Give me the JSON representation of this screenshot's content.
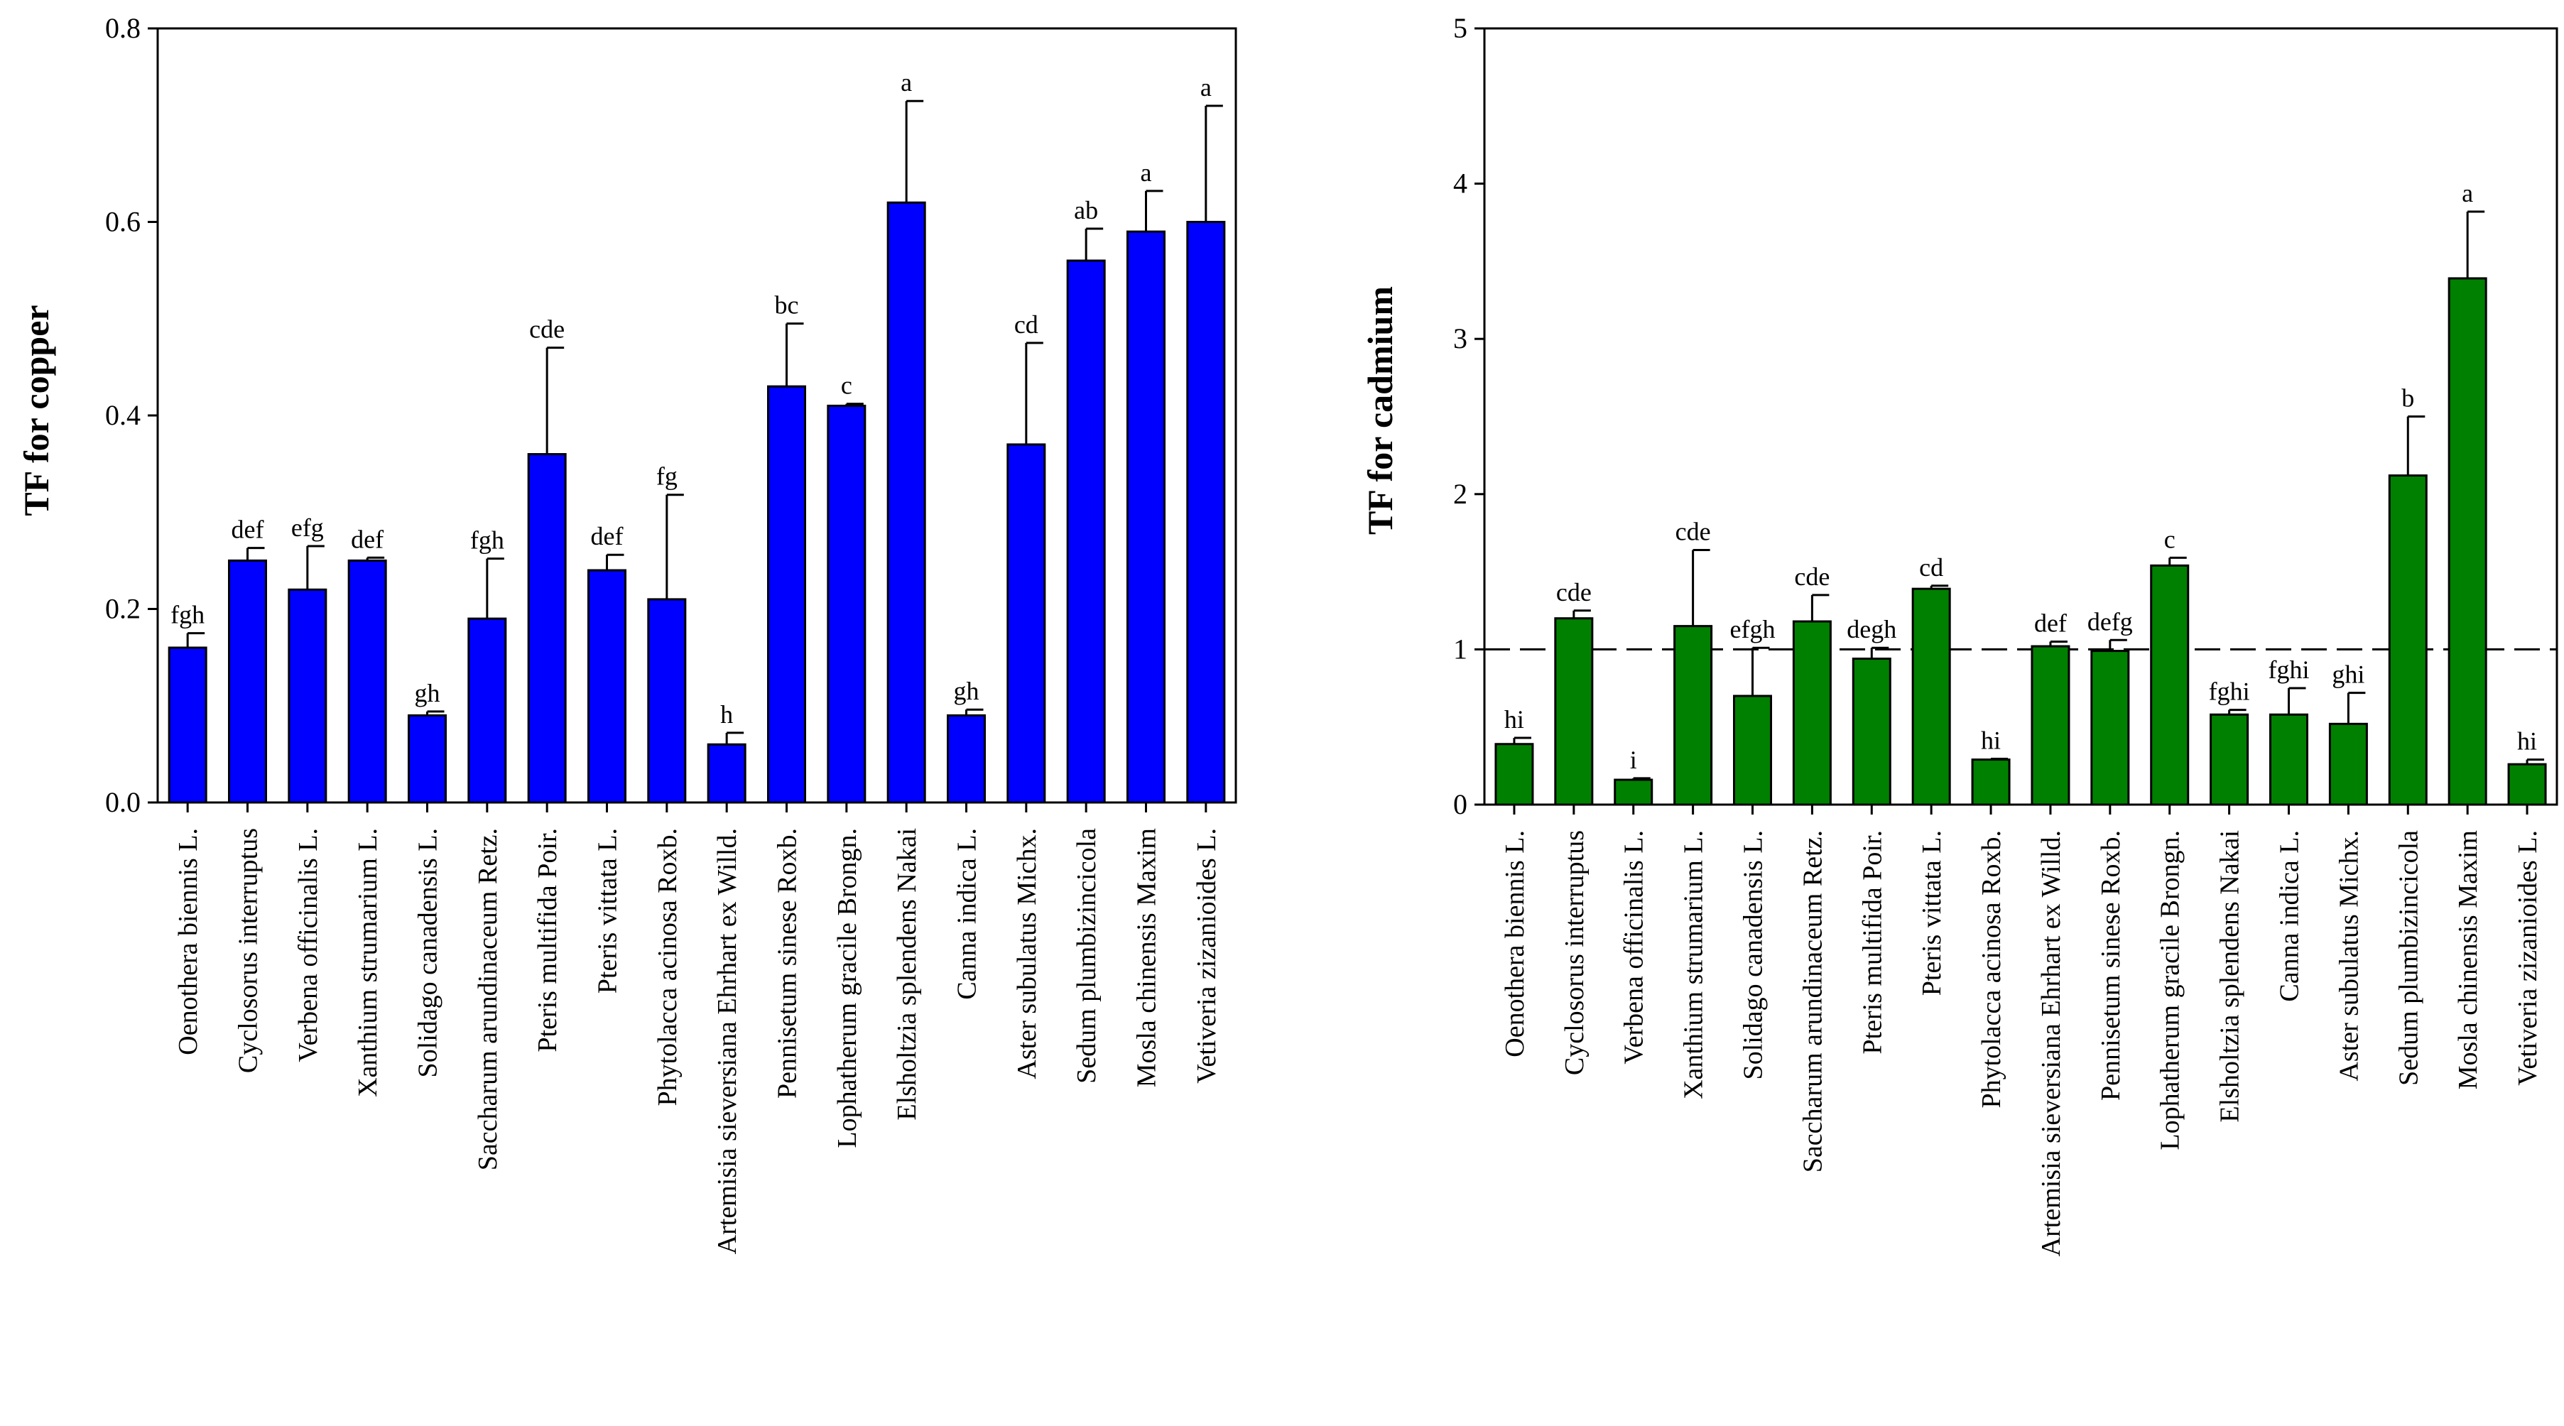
{
  "chart_data": [
    {
      "type": "bar",
      "title": "",
      "xlabel": "",
      "ylabel": "TF for copper",
      "ylim": [
        0,
        0.8
      ],
      "yticks": [
        "0.0",
        "0.2",
        "0.4",
        "0.6",
        "0.8"
      ],
      "ytick_values": [
        0,
        0.2,
        0.4,
        0.6,
        0.8
      ],
      "grid": false,
      "bar_color": "#0000ff",
      "categories": [
        "Oenothera biennis L.",
        "Cyclosorus interruptus",
        "Verbena officinalis L.",
        "Xanthium strumarium L.",
        "Solidago canadensis L.",
        "Saccharum arundinaceum Retz.",
        "Pteris multifida Poir.",
        "Pteris vittata L.",
        "Phytolacca acinosa Roxb.",
        "Artemisia sieversiana Ehrhart ex Willd.",
        "Pennisetum sinese Roxb.",
        "Lophatherum gracile Brongn.",
        "Elsholtzia splendens Nakai",
        "Canna indica L.",
        "Aster subulatus Michx.",
        "Sedum plumbizincicola",
        "Mosla chinensis Maxim",
        "Vetiveria zizanioides L."
      ],
      "values": [
        0.16,
        0.25,
        0.22,
        0.25,
        0.09,
        0.19,
        0.36,
        0.24,
        0.21,
        0.06,
        0.43,
        0.41,
        0.62,
        0.09,
        0.37,
        0.56,
        0.59,
        0.6
      ],
      "errors": [
        0.015,
        0.013,
        0.045,
        0.003,
        0.004,
        0.062,
        0.11,
        0.016,
        0.108,
        0.012,
        0.065,
        0.002,
        0.105,
        0.006,
        0.105,
        0.033,
        0.042,
        0.12
      ],
      "significance": [
        "fgh",
        "def",
        "efg",
        "def",
        "gh",
        "fgh",
        "cde",
        "def",
        "fg",
        "h",
        "bc",
        "c",
        "a",
        "gh",
        "cd",
        "ab",
        "a",
        "a"
      ]
    },
    {
      "type": "bar",
      "title": "",
      "xlabel": "",
      "ylabel": "TF for cadmium",
      "ylim": [
        0,
        5
      ],
      "yticks": [
        "0",
        "1",
        "2",
        "3",
        "4",
        "5"
      ],
      "ytick_values": [
        0,
        1,
        2,
        3,
        4,
        5
      ],
      "grid": false,
      "bar_color": "#008000",
      "reference_line": 1,
      "categories": [
        "Oenothera biennis L.",
        "Cyclosorus interruptus",
        "Verbena officinalis L.",
        "Xanthium strumarium L.",
        "Solidago canadensis L.",
        "Saccharum arundinaceum Retz.",
        "Pteris multifida Poir.",
        "Pteris vittata L.",
        "Phytolacca acinosa Roxb.",
        "Artemisia sieversiana Ehrhart ex Willd.",
        "Pennisetum sinese Roxb.",
        "Lophatherum gracile Brongn.",
        "Elsholtzia splendens Nakai",
        "Canna indica L.",
        "Aster subulatus Michx.",
        "Sedum plumbizincicola",
        "Mosla chinensis Maxim",
        "Vetiveria zizanioides L."
      ],
      "values": [
        0.39,
        1.2,
        0.16,
        1.15,
        0.7,
        1.18,
        0.94,
        1.39,
        0.29,
        1.02,
        0.99,
        1.54,
        0.58,
        0.58,
        0.52,
        2.12,
        3.39,
        0.26
      ],
      "errors": [
        0.04,
        0.05,
        0.01,
        0.49,
        0.31,
        0.17,
        0.07,
        0.02,
        0.005,
        0.03,
        0.07,
        0.05,
        0.03,
        0.17,
        0.2,
        0.38,
        0.43,
        0.03
      ],
      "significance": [
        "hi",
        "cde",
        "i",
        "cde",
        "efgh",
        "cde",
        "degh",
        "cd",
        "hi",
        "def",
        "defg",
        "c",
        "fghi",
        "fghi",
        "ghi",
        "b",
        "a",
        "hi"
      ]
    }
  ]
}
